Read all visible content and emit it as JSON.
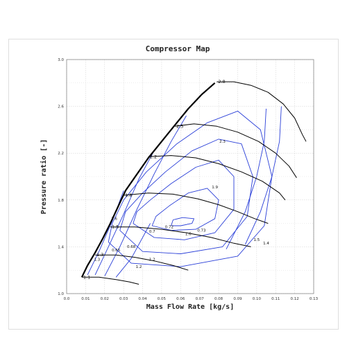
{
  "chart_data": {
    "type": "line",
    "title": "Compressor Map",
    "xlabel": "Mass Flow Rate  [kg/s]",
    "ylabel": "Pressure ratio  [-]",
    "xlim": [
      0.0,
      0.13
    ],
    "ylim": [
      1.0,
      3.0
    ],
    "xticks": [
      "0.0",
      "0.01",
      "0.02",
      "0.03",
      "0.04",
      "0.05",
      "0.06",
      "0.07",
      "0.08",
      "0.09",
      "0.10",
      "0.11",
      "0.12",
      "0.13"
    ],
    "xtick_values": [
      0.0,
      0.01,
      0.02,
      0.03,
      0.04,
      0.05,
      0.06,
      0.07,
      0.08,
      0.09,
      0.1,
      0.11,
      0.12,
      0.13
    ],
    "yticks": [
      "1.0",
      "1.4",
      "1.8",
      "2.2",
      "2.6",
      "3.0"
    ],
    "ytick_values": [
      1.0,
      1.4,
      1.8,
      2.2,
      2.6,
      3.0
    ],
    "grid": true,
    "colors": {
      "speed": "#000000",
      "surge": "#000000",
      "efficiency": "#2a3fd8",
      "grid": "#cfcfcf"
    },
    "surge_line": [
      [
        0.008,
        1.14
      ],
      [
        0.011,
        1.24
      ],
      [
        0.015,
        1.35
      ],
      [
        0.019,
        1.47
      ],
      [
        0.023,
        1.6
      ],
      [
        0.027,
        1.74
      ],
      [
        0.031,
        1.88
      ],
      [
        0.037,
        2.02
      ],
      [
        0.043,
        2.16
      ],
      [
        0.05,
        2.3
      ],
      [
        0.057,
        2.44
      ],
      [
        0.064,
        2.58
      ],
      [
        0.071,
        2.7
      ],
      [
        0.078,
        2.8
      ]
    ],
    "speed_lines": [
      {
        "label": "1.1",
        "points": [
          [
            0.008,
            1.14
          ],
          [
            0.017,
            1.14
          ],
          [
            0.026,
            1.12
          ],
          [
            0.033,
            1.1
          ],
          [
            0.038,
            1.08
          ]
        ]
      },
      {
        "label": "1.3",
        "points": [
          [
            0.015,
            1.33
          ],
          [
            0.026,
            1.33
          ],
          [
            0.036,
            1.31
          ],
          [
            0.046,
            1.28
          ],
          [
            0.056,
            1.24
          ],
          [
            0.064,
            1.2
          ]
        ]
      },
      {
        "label": "1.5",
        "points": [
          [
            0.023,
            1.57
          ],
          [
            0.036,
            1.57
          ],
          [
            0.05,
            1.55
          ],
          [
            0.063,
            1.52
          ],
          [
            0.076,
            1.48
          ],
          [
            0.088,
            1.43
          ],
          [
            0.097,
            1.4
          ]
        ]
      },
      {
        "label": "1.8",
        "points": [
          [
            0.03,
            1.84
          ],
          [
            0.043,
            1.86
          ],
          [
            0.056,
            1.85
          ],
          [
            0.069,
            1.81
          ],
          [
            0.08,
            1.76
          ],
          [
            0.09,
            1.7
          ],
          [
            0.099,
            1.64
          ],
          [
            0.106,
            1.6
          ]
        ]
      },
      {
        "label": "2.2",
        "points": [
          [
            0.043,
            2.17
          ],
          [
            0.055,
            2.18
          ],
          [
            0.068,
            2.16
          ],
          [
            0.08,
            2.11
          ],
          [
            0.092,
            2.04
          ],
          [
            0.103,
            1.96
          ],
          [
            0.112,
            1.86
          ],
          [
            0.115,
            1.8
          ]
        ]
      },
      {
        "label": "2.5",
        "points": [
          [
            0.057,
            2.43
          ],
          [
            0.067,
            2.45
          ],
          [
            0.079,
            2.43
          ],
          [
            0.09,
            2.38
          ],
          [
            0.101,
            2.3
          ],
          [
            0.11,
            2.2
          ],
          [
            0.117,
            2.09
          ],
          [
            0.121,
            1.99
          ]
        ]
      },
      {
        "label": "2.8",
        "points": [
          [
            0.079,
            2.81
          ],
          [
            0.088,
            2.81
          ],
          [
            0.097,
            2.78
          ],
          [
            0.106,
            2.72
          ],
          [
            0.114,
            2.62
          ],
          [
            0.12,
            2.5
          ],
          [
            0.124,
            2.36
          ],
          [
            0.126,
            2.3
          ]
        ]
      }
    ],
    "efficiency_islands": [
      {
        "label": "0.73",
        "points": [
          [
            0.055,
            1.58
          ],
          [
            0.06,
            1.58
          ],
          [
            0.066,
            1.6
          ],
          [
            0.067,
            1.64
          ],
          [
            0.061,
            1.65
          ],
          [
            0.056,
            1.63
          ],
          [
            0.055,
            1.58
          ]
        ]
      },
      {
        "label": "0.72",
        "points": [
          [
            0.045,
            1.58
          ],
          [
            0.055,
            1.54
          ],
          [
            0.068,
            1.55
          ],
          [
            0.078,
            1.64
          ],
          [
            0.08,
            1.8
          ],
          [
            0.074,
            1.9
          ],
          [
            0.064,
            1.86
          ],
          [
            0.054,
            1.75
          ],
          [
            0.047,
            1.66
          ],
          [
            0.045,
            1.58
          ]
        ]
      },
      {
        "label": "0.7",
        "points": [
          [
            0.035,
            1.6
          ],
          [
            0.046,
            1.48
          ],
          [
            0.062,
            1.46
          ],
          [
            0.078,
            1.52
          ],
          [
            0.088,
            1.72
          ],
          [
            0.088,
            2.0
          ],
          [
            0.08,
            2.14
          ],
          [
            0.068,
            2.08
          ],
          [
            0.055,
            1.94
          ],
          [
            0.044,
            1.8
          ],
          [
            0.037,
            1.7
          ],
          [
            0.035,
            1.6
          ]
        ]
      },
      {
        "label": "0.68",
        "points": [
          [
            0.028,
            1.54
          ],
          [
            0.04,
            1.36
          ],
          [
            0.06,
            1.34
          ],
          [
            0.082,
            1.4
          ],
          [
            0.095,
            1.66
          ],
          [
            0.098,
            2.0
          ],
          [
            0.092,
            2.28
          ],
          [
            0.08,
            2.32
          ],
          [
            0.066,
            2.22
          ],
          [
            0.052,
            2.04
          ],
          [
            0.04,
            1.86
          ],
          [
            0.031,
            1.7
          ],
          [
            0.028,
            1.54
          ]
        ]
      },
      {
        "label": "0.65",
        "points": [
          [
            0.022,
            1.44
          ],
          [
            0.034,
            1.26
          ],
          [
            0.06,
            1.23
          ],
          [
            0.09,
            1.32
          ],
          [
            0.104,
            1.58
          ],
          [
            0.108,
            2.0
          ],
          [
            0.102,
            2.4
          ],
          [
            0.09,
            2.56
          ],
          [
            0.074,
            2.46
          ],
          [
            0.058,
            2.28
          ],
          [
            0.042,
            2.04
          ],
          [
            0.03,
            1.8
          ],
          [
            0.024,
            1.6
          ],
          [
            0.022,
            1.44
          ]
        ]
      }
    ],
    "efficiency_branches": [
      [
        [
          0.011,
          1.16
        ],
        [
          0.017,
          1.36
        ],
        [
          0.024,
          1.62
        ],
        [
          0.03,
          1.88
        ]
      ],
      [
        [
          0.015,
          1.16
        ],
        [
          0.022,
          1.4
        ],
        [
          0.03,
          1.68
        ],
        [
          0.038,
          1.98
        ],
        [
          0.046,
          2.22
        ]
      ],
      [
        [
          0.02,
          1.15
        ],
        [
          0.028,
          1.4
        ],
        [
          0.037,
          1.72
        ],
        [
          0.046,
          2.02
        ],
        [
          0.055,
          2.3
        ],
        [
          0.063,
          2.52
        ]
      ],
      [
        [
          0.026,
          1.14
        ],
        [
          0.034,
          1.3
        ],
        [
          0.044,
          1.6
        ]
      ],
      [
        [
          0.084,
          1.38
        ],
        [
          0.094,
          1.7
        ],
        [
          0.1,
          2.0
        ],
        [
          0.104,
          2.3
        ],
        [
          0.105,
          2.58
        ]
      ],
      [
        [
          0.094,
          1.42
        ],
        [
          0.102,
          1.7
        ],
        [
          0.108,
          2.0
        ],
        [
          0.112,
          2.3
        ],
        [
          0.113,
          2.6
        ]
      ]
    ],
    "annotations": [
      {
        "text": "2.3",
        "x": 0.082,
        "y": 2.29
      },
      {
        "text": "1.9",
        "x": 0.078,
        "y": 1.9
      },
      {
        "text": "1.5",
        "x": 0.1,
        "y": 1.45
      },
      {
        "text": "1.4",
        "x": 0.105,
        "y": 1.42
      },
      {
        "text": "1.6",
        "x": 0.025,
        "y": 1.63
      },
      {
        "text": "1.3",
        "x": 0.016,
        "y": 1.28
      },
      {
        "text": "0.65",
        "x": 0.026,
        "y": 1.36
      },
      {
        "text": "0.68",
        "x": 0.034,
        "y": 1.39
      },
      {
        "text": "0.7",
        "x": 0.045,
        "y": 1.52
      },
      {
        "text": "0.72",
        "x": 0.054,
        "y": 1.56
      },
      {
        "text": "0.73",
        "x": 0.071,
        "y": 1.53
      },
      {
        "text": "1.2",
        "x": 0.038,
        "y": 1.22
      },
      {
        "text": "1.2",
        "x": 0.045,
        "y": 1.28
      },
      {
        "text": "1.6",
        "x": 0.064,
        "y": 1.5
      }
    ]
  }
}
